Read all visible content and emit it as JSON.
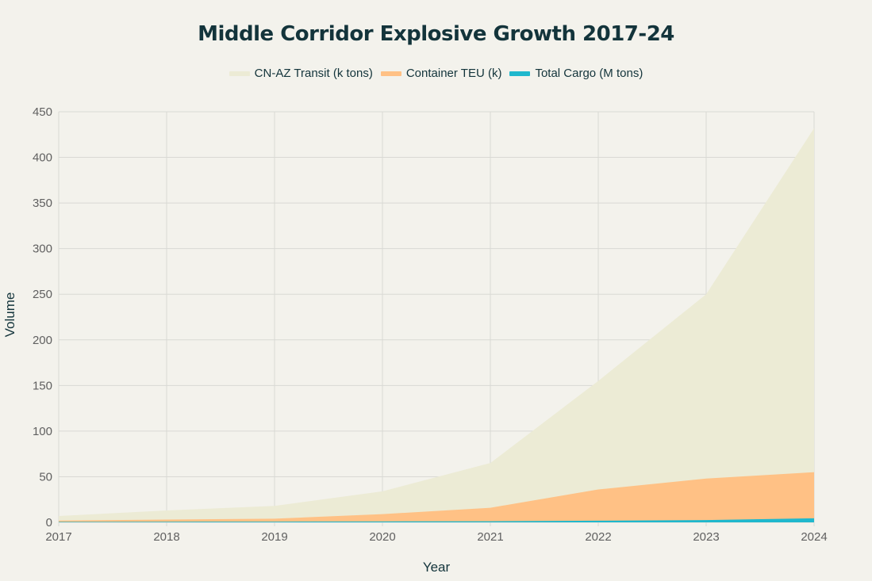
{
  "chart_data": {
    "type": "area",
    "title": "Middle Corridor Explosive Growth 2017-24",
    "xlabel": "Year",
    "ylabel": "Volume",
    "x": [
      2017,
      2018,
      2019,
      2020,
      2021,
      2022,
      2023,
      2024
    ],
    "xticks": [
      "2017",
      "2018",
      "2019",
      "2020",
      "2021",
      "2022",
      "2023",
      "2024"
    ],
    "yticks": [
      "0",
      "50",
      "100",
      "150",
      "200",
      "250",
      "300",
      "350",
      "400",
      "450"
    ],
    "ylim": [
      0,
      450
    ],
    "grid": true,
    "legend_position": "top-center",
    "series": [
      {
        "name": "CN-AZ Transit (k tons)",
        "color": "#ECEBD5",
        "values": [
          7,
          13,
          18,
          34,
          65,
          155,
          250,
          432
        ]
      },
      {
        "name": "Container TEU (k)",
        "color": "#FFC185",
        "values": [
          2,
          3,
          4,
          9,
          16,
          36,
          48,
          55
        ]
      },
      {
        "name": "Total Cargo (M tons)",
        "color": "#1FB8CD",
        "values": [
          0.5,
          0.7,
          0.8,
          1.0,
          1.2,
          1.8,
          2.5,
          4.5
        ]
      }
    ]
  }
}
